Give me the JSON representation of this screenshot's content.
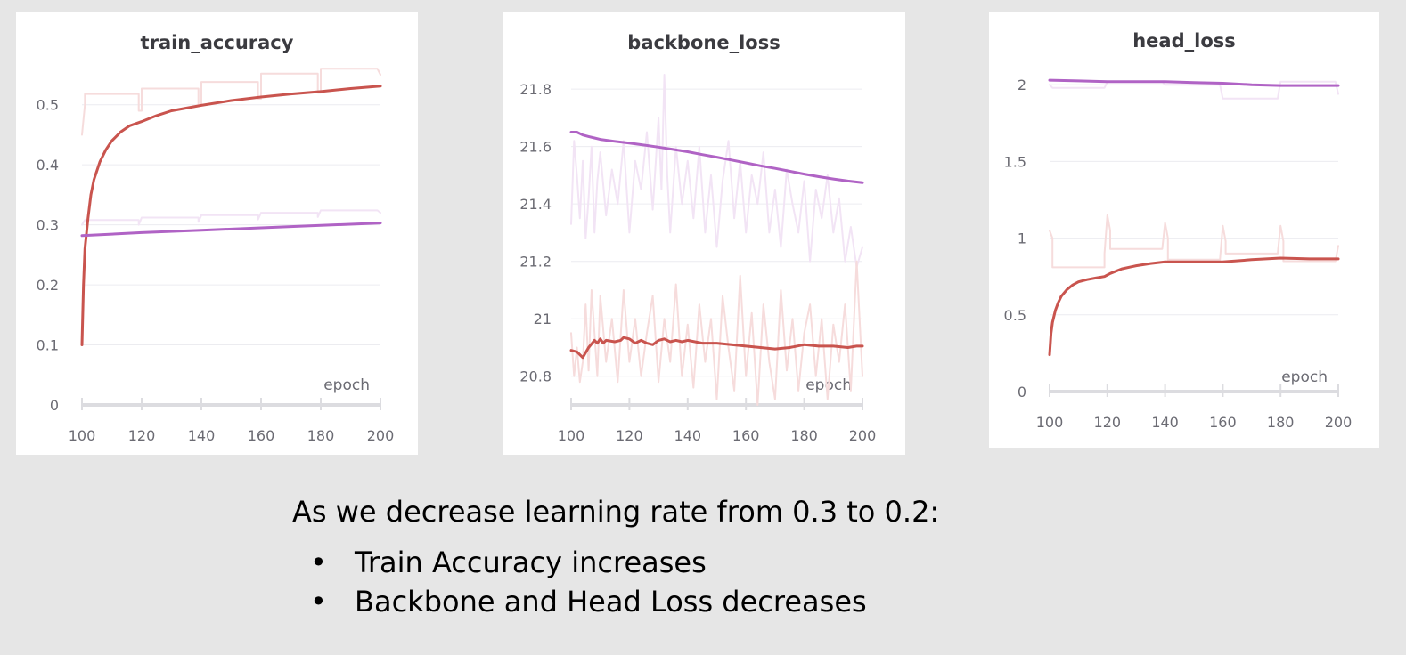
{
  "chart_data": [
    {
      "type": "line",
      "title": "train_accuracy",
      "xlabel": "epoch",
      "ylabel": "",
      "xlim": [
        100,
        200
      ],
      "ylim": [
        0,
        0.55
      ],
      "xticks": [
        100,
        120,
        140,
        160,
        180,
        200
      ],
      "yticks": [
        0,
        0.1,
        0.2,
        0.3,
        0.4,
        0.5
      ],
      "ytick_labels": [
        "0",
        "0.1",
        "0.2",
        "0.3",
        "0.4",
        "0.5"
      ],
      "colors": {
        "red": "#c9544e",
        "purple": "#b063c5",
        "red_raw": "#f6dcdc",
        "purple_raw": "#f2e4f5"
      },
      "series": [
        {
          "color": "red",
          "smooth": true,
          "x": [
            100,
            100.5,
            101,
            102,
            103,
            104,
            106,
            108,
            110,
            113,
            116,
            120,
            125,
            130,
            140,
            150,
            160,
            170,
            180,
            190,
            200
          ],
          "y": [
            0.1,
            0.2,
            0.26,
            0.31,
            0.35,
            0.375,
            0.405,
            0.425,
            0.44,
            0.455,
            0.465,
            0.472,
            0.482,
            0.49,
            0.499,
            0.507,
            0.513,
            0.518,
            0.522,
            0.527,
            0.531
          ]
        },
        {
          "color": "purple",
          "smooth": true,
          "x": [
            100,
            120,
            140,
            160,
            180,
            200
          ],
          "y": [
            0.282,
            0.287,
            0.291,
            0.295,
            0.299,
            0.303
          ]
        },
        {
          "color": "red_raw",
          "smooth": false,
          "x": [
            100,
            101,
            101,
            119,
            119,
            120,
            120,
            139,
            139,
            140,
            140,
            159,
            159,
            160,
            160,
            179,
            179,
            180,
            180,
            199,
            200
          ],
          "y": [
            0.45,
            0.5,
            0.518,
            0.518,
            0.49,
            0.49,
            0.527,
            0.527,
            0.5,
            0.5,
            0.538,
            0.538,
            0.51,
            0.51,
            0.552,
            0.552,
            0.52,
            0.52,
            0.56,
            0.56,
            0.55
          ]
        },
        {
          "color": "purple_raw",
          "smooth": false,
          "x": [
            100,
            101,
            119,
            119,
            120,
            139,
            139,
            140,
            159,
            159,
            160,
            179,
            179,
            180,
            199,
            200
          ],
          "y": [
            0.3,
            0.308,
            0.308,
            0.3,
            0.312,
            0.312,
            0.305,
            0.316,
            0.316,
            0.309,
            0.32,
            0.32,
            0.313,
            0.324,
            0.324,
            0.32
          ]
        }
      ]
    },
    {
      "type": "line",
      "title": "backbone_loss",
      "xlabel": "epoch",
      "ylabel": "",
      "xlim": [
        100,
        200
      ],
      "ylim": [
        20.7,
        21.85
      ],
      "xticks": [
        100,
        120,
        140,
        160,
        180,
        200
      ],
      "yticks": [
        20.8,
        21,
        21.2,
        21.4,
        21.6,
        21.8
      ],
      "ytick_labels": [
        "20.8",
        "21",
        "21.2",
        "21.4",
        "21.6",
        "21.8"
      ],
      "colors": {
        "red": "#c9544e",
        "purple": "#b063c5",
        "red_raw": "#f6dcdc",
        "purple_raw": "#f2e4f5"
      },
      "series": [
        {
          "color": "purple",
          "smooth": true,
          "x": [
            100,
            102,
            104,
            106,
            108,
            110,
            115,
            120,
            125,
            130,
            135,
            140,
            145,
            150,
            155,
            160,
            165,
            170,
            175,
            180,
            185,
            190,
            195,
            200
          ],
          "y": [
            21.65,
            21.65,
            21.64,
            21.635,
            21.63,
            21.625,
            21.618,
            21.612,
            21.605,
            21.598,
            21.59,
            21.582,
            21.572,
            21.563,
            21.553,
            21.543,
            21.533,
            21.524,
            21.514,
            21.504,
            21.495,
            21.487,
            21.48,
            21.474
          ]
        },
        {
          "color": "red",
          "smooth": false,
          "x": [
            100,
            102,
            104,
            106,
            108,
            109,
            110,
            111,
            112,
            115,
            117,
            118,
            120,
            122,
            124,
            126,
            128,
            130,
            132,
            134,
            136,
            138,
            140,
            145,
            150,
            155,
            160,
            165,
            170,
            175,
            180,
            185,
            190,
            195,
            198,
            200
          ],
          "y": [
            20.89,
            20.885,
            20.865,
            20.9,
            20.925,
            20.915,
            20.93,
            20.915,
            20.925,
            20.92,
            20.925,
            20.935,
            20.93,
            20.915,
            20.925,
            20.915,
            20.91,
            20.925,
            20.93,
            20.92,
            20.925,
            20.92,
            20.925,
            20.915,
            20.915,
            20.91,
            20.905,
            20.9,
            20.895,
            20.9,
            20.91,
            20.905,
            20.905,
            20.9,
            20.905,
            20.905
          ]
        },
        {
          "color": "purple_raw",
          "smooth": false,
          "x": [
            100,
            101,
            102,
            103,
            104,
            105,
            106,
            107,
            108,
            109,
            110,
            112,
            114,
            116,
            118,
            120,
            122,
            124,
            126,
            128,
            130,
            131,
            132,
            133,
            134,
            136,
            138,
            140,
            142,
            144,
            146,
            148,
            150,
            152,
            154,
            156,
            158,
            160,
            162,
            164,
            166,
            168,
            170,
            172,
            174,
            176,
            178,
            180,
            182,
            184,
            186,
            188,
            190,
            192,
            194,
            196,
            198,
            200
          ],
          "y": [
            21.33,
            21.62,
            21.5,
            21.35,
            21.55,
            21.28,
            21.42,
            21.6,
            21.3,
            21.48,
            21.58,
            21.36,
            21.52,
            21.4,
            21.62,
            21.3,
            21.55,
            21.45,
            21.65,
            21.38,
            21.7,
            21.45,
            21.85,
            21.5,
            21.3,
            21.6,
            21.4,
            21.55,
            21.35,
            21.6,
            21.3,
            21.5,
            21.25,
            21.48,
            21.62,
            21.35,
            21.55,
            21.3,
            21.5,
            21.4,
            21.58,
            21.3,
            21.45,
            21.25,
            21.52,
            21.4,
            21.3,
            21.48,
            21.2,
            21.45,
            21.35,
            21.5,
            21.3,
            21.42,
            21.2,
            21.32,
            21.18,
            21.25
          ]
        },
        {
          "color": "red_raw",
          "smooth": false,
          "x": [
            100,
            101,
            102,
            103,
            104,
            105,
            106,
            107,
            108,
            109,
            110,
            112,
            114,
            116,
            118,
            120,
            122,
            124,
            126,
            128,
            130,
            132,
            134,
            136,
            138,
            140,
            142,
            144,
            146,
            148,
            150,
            152,
            154,
            156,
            158,
            160,
            162,
            164,
            166,
            168,
            170,
            172,
            174,
            176,
            178,
            180,
            182,
            184,
            186,
            188,
            190,
            192,
            194,
            196,
            198,
            200
          ],
          "y": [
            20.95,
            20.8,
            20.9,
            20.78,
            20.85,
            21.05,
            20.82,
            21.1,
            20.95,
            20.8,
            21.08,
            20.85,
            21.0,
            20.78,
            21.1,
            20.85,
            21.0,
            20.8,
            20.95,
            21.08,
            20.78,
            21.0,
            20.85,
            21.12,
            20.8,
            20.98,
            20.76,
            21.05,
            20.85,
            21.0,
            20.72,
            21.08,
            20.9,
            20.75,
            21.15,
            20.8,
            21.02,
            20.7,
            21.05,
            20.85,
            20.72,
            21.1,
            20.82,
            21.0,
            20.75,
            20.95,
            21.05,
            20.8,
            21.0,
            20.72,
            20.98,
            20.85,
            21.05,
            20.75,
            21.2,
            20.8
          ]
        }
      ]
    },
    {
      "type": "line",
      "title": "head_loss",
      "xlabel": "epoch",
      "ylabel": "",
      "xlim": [
        100,
        200
      ],
      "ylim": [
        0,
        2.1
      ],
      "xticks": [
        100,
        120,
        140,
        160,
        180,
        200
      ],
      "yticks": [
        0,
        0.5,
        1,
        1.5,
        2
      ],
      "ytick_labels": [
        "0",
        "0.5",
        "1",
        "1.5",
        "2"
      ],
      "colors": {
        "red": "#c9544e",
        "purple": "#b063c5",
        "red_raw": "#f6dcdc",
        "purple_raw": "#f2e4f5"
      },
      "series": [
        {
          "color": "purple",
          "smooth": true,
          "x": [
            100,
            110,
            120,
            130,
            140,
            150,
            160,
            170,
            180,
            190,
            200
          ],
          "y": [
            2.03,
            2.025,
            2.02,
            2.02,
            2.02,
            2.015,
            2.01,
            2.0,
            1.995,
            1.995,
            1.995
          ]
        },
        {
          "color": "red",
          "smooth": true,
          "x": [
            100,
            100.5,
            101,
            102,
            103,
            104,
            106,
            108,
            110,
            113,
            116,
            119,
            120,
            121,
            125,
            130,
            135,
            140,
            150,
            160,
            170,
            180,
            190,
            200
          ],
          "y": [
            0.24,
            0.38,
            0.45,
            0.53,
            0.58,
            0.62,
            0.665,
            0.695,
            0.715,
            0.73,
            0.74,
            0.75,
            0.76,
            0.77,
            0.8,
            0.82,
            0.835,
            0.845,
            0.845,
            0.845,
            0.86,
            0.87,
            0.865,
            0.865
          ]
        },
        {
          "color": "red_raw",
          "smooth": false,
          "x": [
            100,
            101,
            101,
            119,
            119,
            120,
            121,
            121,
            139,
            140,
            141,
            141,
            159,
            160,
            161,
            161,
            179,
            180,
            181,
            181,
            199,
            200
          ],
          "y": [
            1.05,
            1.0,
            0.81,
            0.81,
            0.9,
            1.15,
            1.05,
            0.93,
            0.93,
            1.1,
            1.0,
            0.86,
            0.86,
            1.08,
            0.98,
            0.9,
            0.9,
            1.08,
            0.98,
            0.85,
            0.85,
            0.95
          ]
        },
        {
          "color": "purple_raw",
          "smooth": false,
          "x": [
            100,
            101,
            119,
            120,
            139,
            140,
            159,
            160,
            179,
            180,
            199,
            200
          ],
          "y": [
            2.0,
            1.98,
            1.98,
            2.02,
            2.02,
            2.0,
            2.0,
            1.91,
            1.91,
            2.02,
            2.02,
            1.94
          ]
        }
      ]
    }
  ],
  "caption": {
    "heading": "As we decrease learning rate from 0.3 to 0.2:",
    "bullet_glyph": "•",
    "bullets": [
      "Train Accuracy increases",
      "Backbone and Head Loss decreases"
    ]
  }
}
